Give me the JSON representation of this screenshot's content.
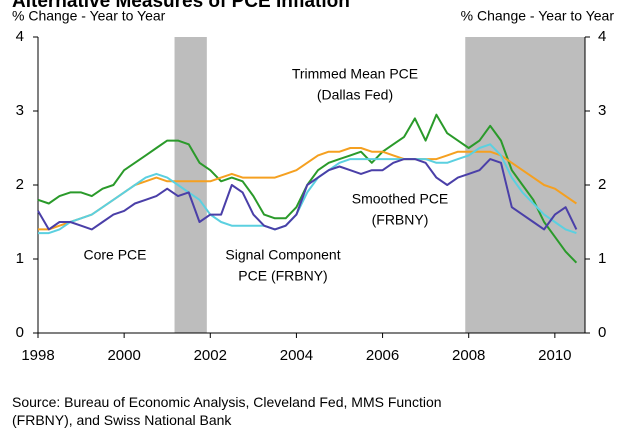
{
  "chart_data": {
    "type": "line",
    "title": "Alternative Measures of PCE Inflation",
    "ylabel": "% Change - Year to Year",
    "y2label": "% Change - Year to Year",
    "source": [
      "Source: Bureau of Economic Analysis, Cleveland Fed, MMS Function",
      "(FRBNY), and Swiss National Bank"
    ],
    "x": [
      1998,
      1998.25,
      1998.5,
      1998.75,
      1999,
      1999.25,
      1999.5,
      1999.75,
      2000,
      2000.25,
      2000.5,
      2000.75,
      2001,
      2001.25,
      2001.5,
      2001.75,
      2002,
      2002.25,
      2002.5,
      2002.75,
      2003,
      2003.25,
      2003.5,
      2003.75,
      2004,
      2004.25,
      2004.5,
      2004.75,
      2005,
      2005.25,
      2005.5,
      2005.75,
      2006,
      2006.25,
      2006.5,
      2006.75,
      2007,
      2007.25,
      2007.5,
      2007.75,
      2008,
      2008.25,
      2008.5,
      2008.75,
      2009,
      2009.25,
      2009.5,
      2009.75,
      2010,
      2010.25,
      2010.5
    ],
    "series": [
      {
        "name": [
          "Trimmed Mean PCE",
          "(Dallas Fed)"
        ],
        "color": "#2a9a2a",
        "values": [
          1.8,
          1.75,
          1.85,
          1.9,
          1.9,
          1.85,
          1.95,
          2.0,
          2.2,
          2.3,
          2.4,
          2.5,
          2.6,
          2.6,
          2.55,
          2.3,
          2.2,
          2.05,
          2.1,
          2.05,
          1.85,
          1.6,
          1.55,
          1.55,
          1.7,
          2.0,
          2.2,
          2.3,
          2.35,
          2.4,
          2.45,
          2.3,
          2.45,
          2.55,
          2.65,
          2.9,
          2.6,
          2.95,
          2.7,
          2.6,
          2.5,
          2.6,
          2.8,
          2.6,
          2.2,
          2.0,
          1.8,
          1.5,
          1.3,
          1.1,
          0.95
        ]
      },
      {
        "name": [
          "Smoothed PCE",
          "(FRBNY)"
        ],
        "color": "#f5a020",
        "values": [
          1.4,
          1.4,
          1.45,
          1.5,
          1.55,
          1.6,
          1.7,
          1.8,
          1.9,
          2.0,
          2.05,
          2.1,
          2.05,
          2.05,
          2.05,
          2.05,
          2.05,
          2.1,
          2.15,
          2.1,
          2.1,
          2.1,
          2.1,
          2.15,
          2.2,
          2.3,
          2.4,
          2.45,
          2.45,
          2.5,
          2.5,
          2.45,
          2.45,
          2.4,
          2.35,
          2.35,
          2.35,
          2.35,
          2.4,
          2.45,
          2.45,
          2.45,
          2.45,
          2.4,
          2.3,
          2.2,
          2.1,
          2.0,
          1.95,
          1.85,
          1.75
        ]
      },
      {
        "name": [
          "Signal Component",
          "PCE (FRBNY)"
        ],
        "color": "#5bd0e0",
        "values": [
          1.35,
          1.35,
          1.4,
          1.5,
          1.55,
          1.6,
          1.7,
          1.8,
          1.9,
          2.0,
          2.1,
          2.15,
          2.1,
          2.0,
          1.9,
          1.8,
          1.6,
          1.5,
          1.45,
          1.45,
          1.45,
          1.45,
          1.4,
          1.45,
          1.6,
          1.9,
          2.1,
          2.2,
          2.3,
          2.35,
          2.35,
          2.35,
          2.35,
          2.35,
          2.35,
          2.35,
          2.35,
          2.3,
          2.3,
          2.35,
          2.4,
          2.5,
          2.55,
          2.4,
          2.1,
          1.9,
          1.75,
          1.6,
          1.5,
          1.4,
          1.35
        ]
      },
      {
        "name": [
          "Core PCE"
        ],
        "color": "#4a3fa8",
        "values": [
          1.65,
          1.4,
          1.5,
          1.5,
          1.45,
          1.4,
          1.5,
          1.6,
          1.65,
          1.75,
          1.8,
          1.85,
          1.95,
          1.85,
          1.9,
          1.5,
          1.6,
          1.6,
          2.0,
          1.9,
          1.6,
          1.45,
          1.4,
          1.45,
          1.6,
          2.0,
          2.1,
          2.2,
          2.25,
          2.2,
          2.15,
          2.2,
          2.2,
          2.3,
          2.35,
          2.35,
          2.3,
          2.1,
          2.0,
          2.1,
          2.15,
          2.2,
          2.35,
          2.3,
          1.7,
          1.6,
          1.5,
          1.4,
          1.6,
          1.7,
          1.4
        ]
      }
    ],
    "shading": [
      [
        2001.17,
        2001.92
      ],
      [
        2007.92,
        2010.7
      ]
    ],
    "shading_color": "#bdbdbd",
    "xlim": [
      1998,
      2010.7
    ],
    "xticks": [
      1998,
      2000,
      2002,
      2004,
      2006,
      2008,
      2010
    ],
    "ylim": [
      0,
      4
    ],
    "yticks": [
      0,
      1,
      2,
      3,
      4
    ],
    "y2lim": [
      0,
      4
    ],
    "y2ticks": [
      0,
      1,
      2,
      3,
      4
    ]
  }
}
